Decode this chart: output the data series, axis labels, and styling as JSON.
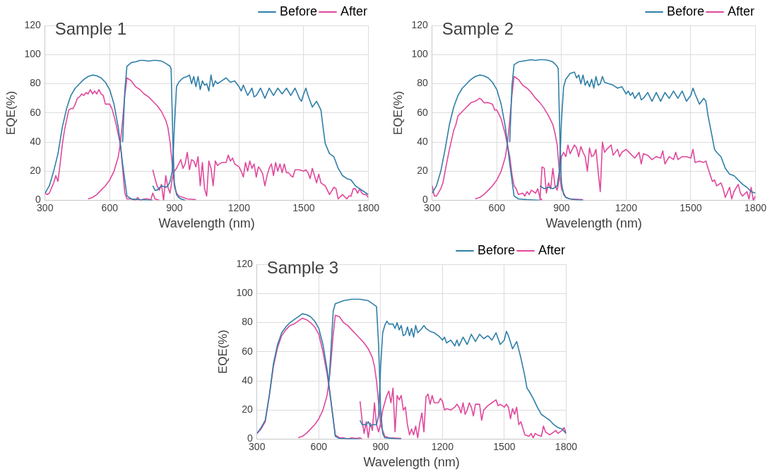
{
  "chart_data": [
    {
      "type": "line",
      "title": "Sample 1",
      "xlabel": "Wavelength (nm)",
      "ylabel": "EQE(%)",
      "xlim": [
        300,
        1800
      ],
      "xticks": [
        300,
        600,
        900,
        1200,
        1500,
        1800
      ],
      "ylim": [
        0,
        120
      ],
      "yticks": [
        0,
        20,
        40,
        60,
        80,
        100,
        120
      ],
      "grid": true,
      "legend": "top right",
      "marker": "none",
      "line_style": "solid",
      "series": [
        {
          "name": "Before",
          "color": "#2f7fa8",
          "x": [
            300,
            320,
            340,
            360,
            380,
            400,
            420,
            440,
            460,
            480,
            500,
            520,
            540,
            560,
            580,
            600,
            620,
            640,
            660,
            680,
            700,
            740,
            800
          ],
          "values": [
            5,
            10,
            20,
            32,
            50,
            63,
            72,
            77,
            80,
            83,
            85,
            86,
            85.5,
            84,
            81,
            76,
            66,
            50,
            25,
            3,
            1,
            0.5,
            0
          ]
        },
        {
          "color": "#2f7fa8",
          "x": [
            660,
            670,
            680,
            700,
            720,
            740,
            760,
            780,
            800,
            820,
            840,
            860,
            880,
            885,
            890,
            895,
            900,
            910,
            920,
            930,
            940,
            950
          ],
          "values": [
            40,
            75,
            92,
            94.5,
            95,
            96,
            96,
            95.5,
            96,
            96,
            95.5,
            94,
            92,
            90,
            60,
            30,
            12,
            4,
            2,
            1,
            0.5,
            0
          ]
        },
        {
          "color": "#2f7fa8",
          "x": [
            800,
            810,
            820,
            840,
            860,
            870,
            880,
            890,
            900,
            910,
            920,
            940,
            960,
            970,
            980,
            990,
            1000,
            1010,
            1020,
            1030,
            1040,
            1050,
            1060,
            1070,
            1080,
            1090,
            1100,
            1120,
            1140,
            1160,
            1180,
            1200,
            1210,
            1220,
            1240,
            1260,
            1270,
            1280,
            1300,
            1320,
            1340,
            1360,
            1380,
            1400,
            1420,
            1440,
            1460,
            1480,
            1490,
            1500,
            1510,
            1520,
            1540,
            1560,
            1580,
            1590,
            1600,
            1620,
            1640,
            1660,
            1680,
            1700,
            1720,
            1740,
            1760,
            1780,
            1800
          ],
          "values": [
            10,
            7,
            7,
            10,
            9,
            10,
            13,
            20,
            50,
            78,
            81,
            84,
            85,
            86,
            80,
            85,
            78,
            85,
            76,
            82,
            79,
            80,
            75,
            86,
            78,
            82,
            80,
            82,
            84,
            81,
            82,
            78,
            75,
            79,
            72,
            77,
            71,
            72,
            77,
            70,
            77,
            72,
            77,
            73,
            77,
            72,
            77,
            70,
            68,
            73,
            77,
            72,
            64,
            68,
            62,
            50,
            39,
            32,
            30,
            22,
            17,
            15,
            14,
            10,
            8,
            6,
            4
          ]
        },
        {
          "name": "After",
          "color": "#e0489c",
          "x": [
            300,
            310,
            320,
            340,
            350,
            360,
            370,
            380,
            390,
            400,
            410,
            420,
            430,
            440,
            450,
            460,
            470,
            480,
            490,
            500,
            510,
            520,
            530,
            540,
            550,
            560,
            570,
            580,
            590,
            600,
            610,
            620,
            630,
            640,
            650,
            660,
            670,
            680,
            700,
            720,
            730,
            740,
            760,
            780,
            790,
            800,
            810,
            830
          ],
          "values": [
            5,
            4,
            5,
            12,
            17,
            13,
            25,
            38,
            48,
            55,
            62,
            63,
            63,
            66,
            70,
            71,
            73,
            72,
            74,
            73,
            76,
            73,
            75,
            73,
            76,
            73,
            72,
            66,
            66,
            66,
            63,
            58,
            52,
            45,
            38,
            22,
            5,
            1,
            1,
            0,
            2,
            0,
            1,
            1,
            0,
            5,
            1,
            0
          ]
        },
        {
          "color": "#e0489c",
          "x": [
            500,
            520,
            540,
            560,
            580,
            600,
            620,
            640,
            650,
            660,
            670,
            680,
            700,
            720,
            740,
            760,
            780,
            800,
            820,
            840,
            860,
            870,
            880,
            890,
            900,
            910,
            920,
            940,
            960,
            1000
          ],
          "values": [
            1,
            2,
            4,
            7,
            10,
            14,
            20,
            30,
            40,
            55,
            72,
            84,
            82,
            78,
            76,
            73,
            71,
            68,
            65,
            61,
            55,
            50,
            40,
            25,
            10,
            5,
            3,
            2,
            1,
            0.5
          ]
        },
        {
          "color": "#e0489c",
          "x": [
            800,
            810,
            820,
            830,
            840,
            850,
            860,
            870,
            880,
            890,
            900,
            910,
            920,
            930,
            940,
            950,
            960,
            970,
            980,
            990,
            1000,
            1010,
            1020,
            1030,
            1040,
            1050,
            1060,
            1070,
            1080,
            1090,
            1100,
            1120,
            1140,
            1150,
            1160,
            1170,
            1180,
            1200,
            1210,
            1220,
            1230,
            1240,
            1250,
            1260,
            1270,
            1280,
            1290,
            1300,
            1310,
            1320,
            1330,
            1340,
            1350,
            1360,
            1370,
            1380,
            1390,
            1400,
            1410,
            1420,
            1430,
            1440,
            1450,
            1460,
            1480,
            1500,
            1510,
            1520,
            1530,
            1540,
            1560,
            1570,
            1580,
            1600,
            1620,
            1640,
            1650,
            1660,
            1680,
            1700,
            1710,
            1720,
            1730,
            1740,
            1750,
            1760,
            1770,
            1780,
            1790,
            1800
          ],
          "values": [
            21,
            15,
            10,
            7,
            11,
            0,
            17,
            9,
            5,
            15,
            20,
            22,
            25,
            28,
            22,
            25,
            33,
            21,
            28,
            27,
            23,
            30,
            10,
            26,
            8,
            3,
            27,
            22,
            10,
            27,
            24,
            26,
            26,
            31,
            27,
            29,
            25,
            23,
            20,
            16,
            26,
            20,
            27,
            22,
            25,
            16,
            23,
            21,
            18,
            10,
            17,
            22,
            25,
            17,
            26,
            20,
            25,
            19,
            25,
            19,
            19,
            17,
            16,
            21,
            21,
            20,
            21,
            19,
            15,
            22,
            12,
            18,
            12,
            10,
            4,
            9,
            8,
            1,
            4,
            1,
            3,
            3,
            8,
            8,
            5,
            8,
            5,
            4,
            4,
            2
          ]
        }
      ]
    },
    {
      "type": "line",
      "title": "Sample 2",
      "xlabel": "Wavelength (nm)",
      "ylabel": "EQE(%)",
      "xlim": [
        300,
        1800
      ],
      "xticks": [
        300,
        600,
        900,
        1200,
        1500,
        1800
      ],
      "ylim": [
        0,
        120
      ],
      "yticks": [
        0,
        20,
        40,
        60,
        80,
        100,
        120
      ],
      "grid": true,
      "legend": "top right",
      "marker": "none",
      "line_style": "solid",
      "series": [
        {
          "name": "Before",
          "color": "#2f7fa8",
          "x": [
            300,
            320,
            340,
            360,
            380,
            400,
            420,
            440,
            460,
            480,
            500,
            520,
            540,
            560,
            580,
            600,
            620,
            640,
            660,
            680,
            700,
            740,
            800
          ],
          "values": [
            5,
            10,
            20,
            35,
            52,
            64,
            72,
            77,
            80,
            83,
            85,
            86,
            85.5,
            84,
            81,
            76,
            66,
            50,
            25,
            3,
            1,
            0.5,
            0
          ]
        },
        {
          "color": "#2f7fa8",
          "x": [
            660,
            670,
            680,
            700,
            720,
            740,
            760,
            780,
            800,
            820,
            840,
            860,
            880,
            885,
            890,
            895,
            900,
            910,
            920,
            940,
            960,
            1000
          ],
          "values": [
            40,
            78,
            93,
            95,
            95.5,
            96,
            96.5,
            96,
            96.5,
            96.5,
            96,
            95,
            92,
            90,
            60,
            30,
            12,
            4,
            2,
            1,
            0.5,
            0
          ]
        },
        {
          "color": "#2f7fa8",
          "x": [
            800,
            820,
            840,
            860,
            880,
            890,
            900,
            910,
            920,
            940,
            960,
            970,
            980,
            990,
            1000,
            1010,
            1020,
            1030,
            1040,
            1050,
            1060,
            1070,
            1080,
            1090,
            1100,
            1120,
            1140,
            1160,
            1180,
            1200,
            1210,
            1220,
            1230,
            1240,
            1260,
            1270,
            1280,
            1300,
            1320,
            1340,
            1360,
            1380,
            1400,
            1420,
            1440,
            1460,
            1480,
            1500,
            1510,
            1520,
            1540,
            1560,
            1570,
            1580,
            1600,
            1610,
            1620,
            1640,
            1660,
            1680,
            1700,
            1720,
            1740,
            1760,
            1780,
            1800
          ],
          "values": [
            10,
            8,
            9,
            8,
            10,
            20,
            55,
            78,
            83,
            87,
            88,
            84,
            86,
            80,
            86,
            79,
            82,
            78,
            83,
            77,
            85,
            79,
            80,
            85,
            81,
            80,
            79,
            77,
            78,
            73,
            75,
            72,
            74,
            70,
            74,
            69,
            70,
            74,
            68,
            74,
            68,
            74,
            70,
            75,
            70,
            75,
            68,
            72,
            77,
            73,
            66,
            70,
            68,
            58,
            43,
            35,
            33,
            30,
            22,
            18,
            17,
            14,
            11,
            9,
            6,
            5
          ]
        },
        {
          "name": "After",
          "color": "#e0489c",
          "x": [
            300,
            310,
            320,
            340,
            350,
            360,
            380,
            400,
            410,
            420,
            440,
            460,
            480,
            500,
            520,
            530,
            540,
            560,
            580,
            590,
            600,
            620,
            640,
            660,
            670,
            680,
            690,
            700,
            720,
            730,
            740,
            750,
            760,
            780,
            790,
            800,
            810
          ],
          "values": [
            10,
            3,
            3,
            8,
            12,
            20,
            35,
            48,
            52,
            58,
            61,
            64,
            67,
            68,
            70,
            69,
            67,
            67,
            66,
            62,
            62,
            56,
            45,
            30,
            18,
            10,
            8,
            4,
            5,
            3,
            6,
            4,
            7,
            5,
            8,
            2,
            0
          ]
        },
        {
          "color": "#e0489c",
          "x": [
            500,
            520,
            540,
            560,
            580,
            600,
            620,
            640,
            650,
            660,
            670,
            680,
            700,
            720,
            740,
            760,
            780,
            800,
            820,
            840,
            860,
            870,
            880,
            890,
            900,
            920,
            940,
            1000
          ],
          "values": [
            1,
            2,
            4,
            7,
            10,
            14,
            20,
            30,
            40,
            55,
            72,
            85,
            83,
            79,
            77,
            74,
            70,
            67,
            63,
            58,
            52,
            46,
            38,
            20,
            8,
            2,
            1,
            0.5
          ]
        },
        {
          "color": "#e0489c",
          "x": [
            800,
            810,
            820,
            830,
            840,
            850,
            860,
            870,
            880,
            890,
            900,
            910,
            920,
            930,
            940,
            950,
            960,
            970,
            980,
            990,
            1000,
            1010,
            1020,
            1030,
            1040,
            1050,
            1060,
            1070,
            1080,
            1090,
            1100,
            1110,
            1130,
            1140,
            1160,
            1170,
            1180,
            1200,
            1220,
            1240,
            1260,
            1270,
            1280,
            1300,
            1320,
            1340,
            1360,
            1370,
            1380,
            1400,
            1420,
            1430,
            1440,
            1460,
            1480,
            1500,
            1510,
            1520,
            1540,
            1560,
            1570,
            1580,
            1600,
            1610,
            1620,
            1640,
            1650,
            1660,
            1680,
            1690,
            1700,
            1720,
            1730,
            1740,
            1760,
            1770,
            1780,
            1790,
            1800
          ],
          "values": [
            0,
            23,
            22,
            5,
            12,
            8,
            22,
            10,
            7,
            15,
            30,
            33,
            30,
            38,
            32,
            35,
            38,
            36,
            30,
            37,
            33,
            30,
            20,
            36,
            30,
            31,
            35,
            20,
            6,
            40,
            33,
            35,
            38,
            31,
            35,
            30,
            33,
            35,
            32,
            29,
            33,
            25,
            32,
            31,
            28,
            30,
            29,
            34,
            25,
            30,
            28,
            33,
            28,
            30,
            30,
            29,
            35,
            26,
            27,
            26,
            27,
            22,
            13,
            14,
            10,
            12,
            8,
            2,
            9,
            1,
            6,
            11,
            5,
            3,
            6,
            1,
            9,
            0,
            3
          ]
        }
      ]
    },
    {
      "type": "line",
      "title": "Sample 3",
      "xlabel": "Wavelength (nm)",
      "ylabel": "EQE(%)",
      "xlim": [
        300,
        1800
      ],
      "xticks": [
        300,
        600,
        900,
        1200,
        1500,
        1800
      ],
      "ylim": [
        0,
        120
      ],
      "yticks": [
        0,
        20,
        40,
        60,
        80,
        100,
        120
      ],
      "grid": true,
      "legend": "top right",
      "marker": "none",
      "line_style": "solid",
      "series": [
        {
          "name": "Before",
          "color": "#2f7fa8",
          "x": [
            300,
            320,
            340,
            360,
            380,
            400,
            420,
            440,
            460,
            480,
            500,
            520,
            540,
            560,
            580,
            600,
            620,
            640,
            660,
            680,
            700,
            800
          ],
          "values": [
            4,
            8,
            13,
            30,
            52,
            65,
            73,
            77,
            80,
            82,
            84,
            86,
            85.5,
            84,
            81,
            76,
            65,
            48,
            25,
            2,
            0.5,
            0
          ]
        },
        {
          "color": "#2f7fa8",
          "x": [
            650,
            670,
            680,
            700,
            720,
            760,
            800,
            840,
            860,
            880,
            890,
            900,
            910,
            920,
            960,
            1000
          ],
          "values": [
            40,
            88,
            93,
            94,
            95,
            96,
            96,
            95,
            93,
            91,
            65,
            20,
            4,
            1,
            0.5,
            0
          ]
        },
        {
          "color": "#2f7fa8",
          "x": [
            800,
            810,
            830,
            840,
            850,
            860,
            880,
            890,
            900,
            910,
            920,
            930,
            940,
            960,
            970,
            980,
            990,
            1000,
            1010,
            1020,
            1030,
            1040,
            1050,
            1060,
            1070,
            1080,
            1100,
            1110,
            1120,
            1140,
            1160,
            1180,
            1200,
            1210,
            1220,
            1240,
            1260,
            1270,
            1280,
            1300,
            1320,
            1340,
            1360,
            1380,
            1400,
            1420,
            1440,
            1460,
            1480,
            1500,
            1510,
            1520,
            1540,
            1560,
            1580,
            1600,
            1610,
            1620,
            1640,
            1660,
            1680,
            1700,
            1720,
            1740,
            1760,
            1780,
            1800
          ],
          "values": [
            13,
            10,
            10,
            12,
            9,
            10,
            10,
            16,
            50,
            73,
            78,
            81,
            79,
            79,
            76,
            80,
            75,
            78,
            71,
            72,
            77,
            71,
            76,
            70,
            78,
            73,
            76,
            78,
            76,
            74,
            73,
            71,
            68,
            70,
            66,
            68,
            64,
            68,
            64,
            70,
            65,
            72,
            67,
            72,
            69,
            71,
            68,
            73,
            65,
            68,
            74,
            71,
            62,
            67,
            56,
            43,
            35,
            33,
            28,
            22,
            17,
            15,
            13,
            10,
            8,
            7,
            4
          ]
        },
        {
          "name": "After",
          "color": "#e0489c",
          "x": [
            300,
            320,
            340,
            360,
            380,
            400,
            420,
            440,
            460,
            480,
            500,
            520,
            540,
            560,
            580,
            600,
            620,
            640,
            660,
            680,
            700,
            720,
            740,
            760,
            780,
            800,
            810
          ],
          "values": [
            4,
            7,
            12,
            30,
            50,
            63,
            71,
            75,
            78,
            79,
            81,
            83,
            82,
            80,
            77,
            72,
            60,
            45,
            25,
            3,
            1,
            1,
            0,
            1,
            0.5,
            1,
            0
          ]
        },
        {
          "color": "#e0489c",
          "x": [
            500,
            520,
            540,
            560,
            580,
            600,
            620,
            640,
            650,
            660,
            670,
            680,
            700,
            720,
            740,
            760,
            780,
            800,
            820,
            840,
            860,
            870,
            880,
            890,
            900,
            920,
            940,
            1000
          ],
          "values": [
            1,
            2,
            4,
            7,
            10,
            14,
            20,
            30,
            40,
            55,
            72,
            85,
            84,
            80,
            78,
            75,
            72,
            69,
            66,
            62,
            56,
            50,
            40,
            25,
            10,
            2,
            1,
            0.5
          ]
        },
        {
          "color": "#e0489c",
          "x": [
            800,
            810,
            820,
            830,
            840,
            850,
            860,
            870,
            880,
            890,
            900,
            910,
            920,
            930,
            940,
            950,
            960,
            970,
            980,
            990,
            1000,
            1010,
            1020,
            1030,
            1040,
            1050,
            1060,
            1070,
            1080,
            1090,
            1100,
            1110,
            1120,
            1130,
            1140,
            1150,
            1160,
            1180,
            1190,
            1200,
            1210,
            1220,
            1240,
            1260,
            1270,
            1280,
            1290,
            1300,
            1310,
            1320,
            1330,
            1340,
            1350,
            1360,
            1380,
            1390,
            1400,
            1420,
            1440,
            1460,
            1470,
            1480,
            1500,
            1510,
            1520,
            1530,
            1540,
            1550,
            1560,
            1570,
            1580,
            1600,
            1620,
            1630,
            1640,
            1650,
            1660,
            1680,
            1690,
            1700,
            1720,
            1740,
            1750,
            1760,
            1780,
            1790,
            1800
          ],
          "values": [
            26,
            13,
            4,
            12,
            1,
            11,
            6,
            25,
            10,
            5,
            11,
            20,
            25,
            30,
            33,
            25,
            35,
            5,
            30,
            27,
            30,
            20,
            22,
            10,
            3,
            7,
            3,
            9,
            1,
            11,
            18,
            5,
            29,
            31,
            24,
            30,
            25,
            25,
            28,
            26,
            20,
            21,
            20,
            22,
            24,
            22,
            18,
            25,
            17,
            20,
            25,
            22,
            16,
            24,
            24,
            13,
            20,
            23,
            25,
            27,
            23,
            24,
            22,
            24,
            22,
            14,
            21,
            17,
            22,
            10,
            12,
            3,
            2,
            4,
            1,
            4,
            3,
            2,
            9,
            5,
            3,
            5,
            6,
            4,
            6,
            8,
            4
          ]
        }
      ]
    }
  ]
}
